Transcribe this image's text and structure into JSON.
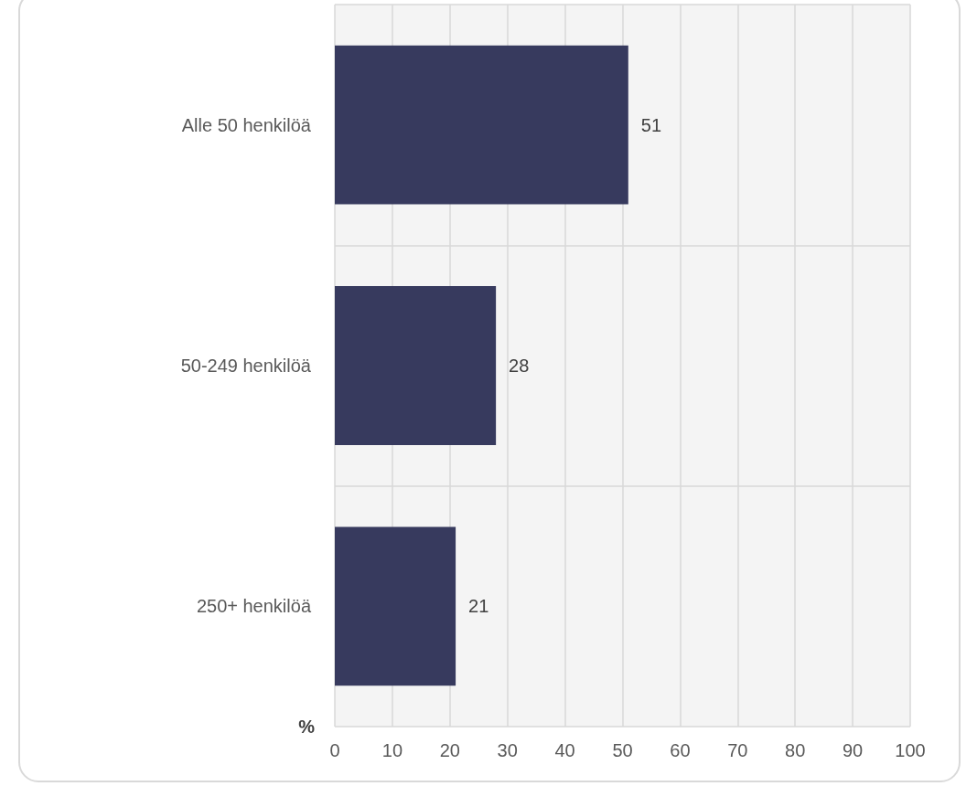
{
  "chart_data": {
    "type": "bar",
    "orientation": "horizontal",
    "categories": [
      "Alle 50 henkilöä",
      "50-249 henkilöä",
      "250+ henkilöä"
    ],
    "values": [
      51,
      28,
      21
    ],
    "color": "#373a5e",
    "xlabel": "%",
    "xlim": [
      0,
      100
    ],
    "xticks": [
      0,
      10,
      20,
      30,
      40,
      50,
      60,
      70,
      80,
      90,
      100
    ],
    "data_labels": true,
    "grid": true
  }
}
